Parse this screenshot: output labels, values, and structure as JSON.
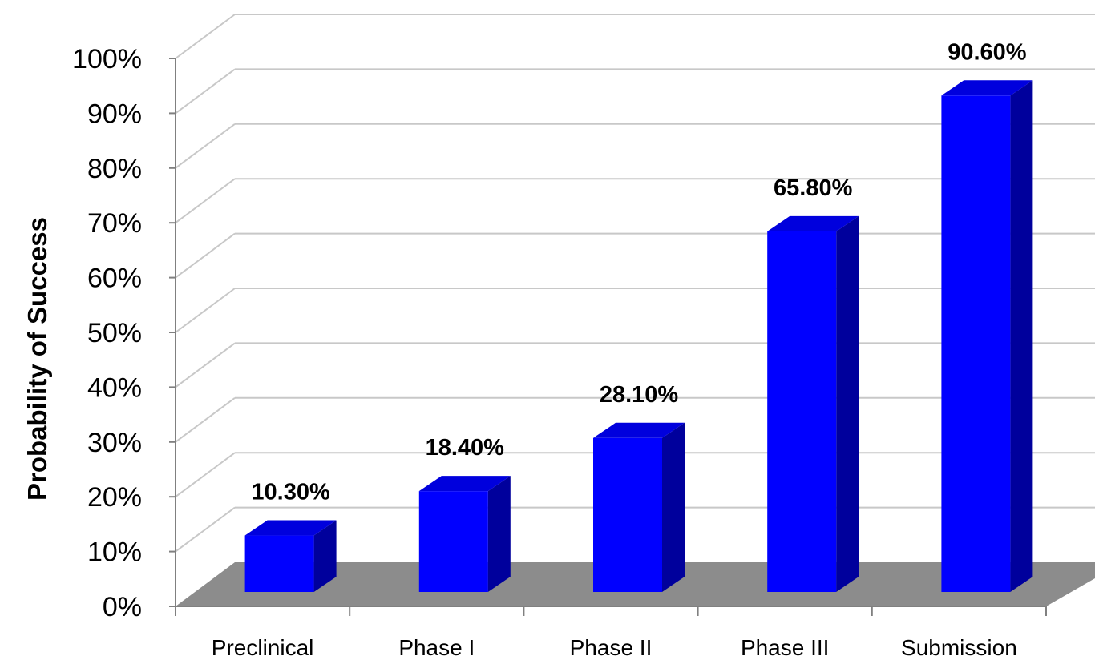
{
  "chart_data": {
    "type": "bar",
    "title": "",
    "xlabel": "",
    "ylabel": "Probability of Success",
    "categories": [
      "Preclinical",
      "Phase I",
      "Phase II",
      "Phase III",
      "Submission"
    ],
    "values": [
      10.3,
      18.4,
      28.1,
      65.8,
      90.6
    ],
    "data_labels": [
      "10.30%",
      "18.40%",
      "28.10%",
      "65.80%",
      "90.60%"
    ],
    "ylim": [
      0,
      100
    ],
    "y_ticks": [
      0,
      10,
      20,
      30,
      40,
      50,
      60,
      70,
      80,
      90,
      100
    ],
    "y_tick_labels": [
      "0%",
      "10%",
      "20%",
      "30%",
      "40%",
      "50%",
      "60%",
      "70%",
      "80%",
      "90%",
      "100%"
    ],
    "grid": true,
    "legend": "none",
    "three_d": true,
    "colors": {
      "bar_front": "#0000FF",
      "bar_top": "#0000DD",
      "bar_side": "#00009C",
      "floor": "#8C8C8C",
      "gridline": "#C8C8C8",
      "axis": "#808080"
    }
  }
}
